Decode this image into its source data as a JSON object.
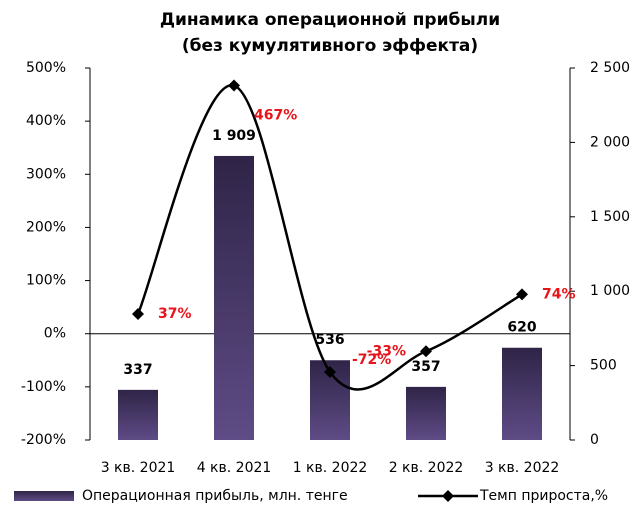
{
  "chart_data": {
    "type": "bar_line",
    "title": "Динамика операционной прибыли",
    "subtitle": "(без кумулятивного эффекта)",
    "categories": [
      "3 кв. 2021",
      "4 кв. 2021",
      "1 кв. 2022",
      "2 кв. 2022",
      "3 кв. 2022"
    ],
    "series": [
      {
        "name": "Операционная прибыль, млн. тенге",
        "color": "#4a3b6e",
        "type": "bar",
        "axis": "y2",
        "values": [
          337,
          1909,
          536,
          357,
          620
        ],
        "value_labels": [
          "337",
          "1 909",
          "536",
          "357",
          "620"
        ]
      },
      {
        "name": "Темп прироста,%",
        "color": "#000000",
        "type": "line",
        "axis": "y",
        "values": [
          37,
          467,
          -72,
          -33,
          74
        ],
        "value_labels": [
          "37%",
          "467%",
          "-72%",
          "-33%",
          "74%"
        ]
      }
    ],
    "ylim": [
      -200,
      500
    ],
    "yticks": [
      {
        "value": -200,
        "label": "-200%"
      },
      {
        "value": -100,
        "label": "-100%"
      },
      {
        "value": 0,
        "label": "0%"
      },
      {
        "value": 100,
        "label": "100%"
      },
      {
        "value": 200,
        "label": "200%"
      },
      {
        "value": 300,
        "label": "300%"
      },
      {
        "value": 400,
        "label": "400%"
      },
      {
        "value": 500,
        "label": "500%"
      }
    ],
    "y2lim": [
      0,
      2500
    ],
    "y2ticks": [
      0,
      500,
      {
        "value": 1000,
        "label": "1 000"
      },
      {
        "value": 1500,
        "label": "1 500"
      },
      {
        "value": 2000,
        "label": "2 000"
      },
      {
        "value": 2500,
        "label": "2 500"
      }
    ],
    "legend": "bottom"
  }
}
